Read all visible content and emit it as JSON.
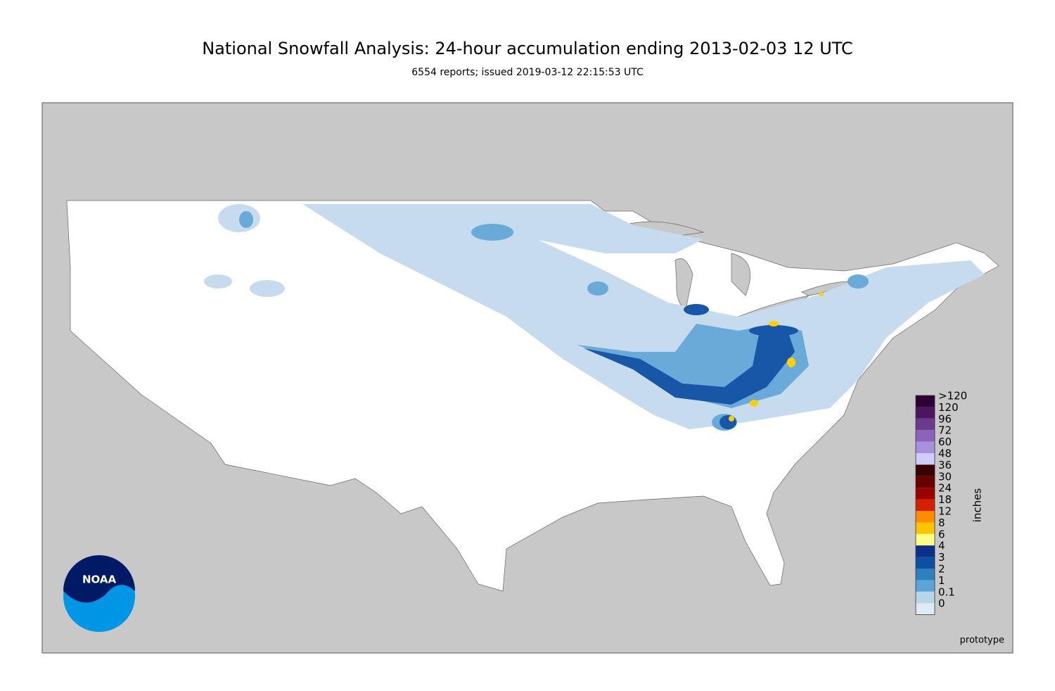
{
  "header": {
    "title": "National Snowfall Analysis: 24-hour accumulation ending 2013-02-03 12 UTC",
    "subtitle": "6554 reports; issued 2019-03-12 22:15:53 UTC"
  },
  "map": {
    "logo": "NOAA",
    "note": "prototype"
  },
  "legend": {
    "label": "inches",
    "levels": [
      {
        "label": ">120",
        "color": "#2d0036"
      },
      {
        "label": "120",
        "color": "#4d1460"
      },
      {
        "label": "96",
        "color": "#6b3a8f"
      },
      {
        "label": "72",
        "color": "#8a64bb"
      },
      {
        "label": "60",
        "color": "#a791dc"
      },
      {
        "label": "48",
        "color": "#d0ccff"
      },
      {
        "label": "36",
        "color": "#3b0000"
      },
      {
        "label": "30",
        "color": "#690000"
      },
      {
        "label": "24",
        "color": "#9a0000"
      },
      {
        "label": "18",
        "color": "#d42000"
      },
      {
        "label": "12",
        "color": "#ff8c00"
      },
      {
        "label": "8",
        "color": "#ffc400"
      },
      {
        "label": "6",
        "color": "#ffff88"
      },
      {
        "label": "4",
        "color": "#0c2f8a"
      },
      {
        "label": "3",
        "color": "#0d4fa0"
      },
      {
        "label": "2",
        "color": "#2f7fc0"
      },
      {
        "label": "1",
        "color": "#5aa5d8"
      },
      {
        "label": "0.1",
        "color": "#b8d5ea"
      },
      {
        "label": "0",
        "color": "#deebf5"
      }
    ]
  }
}
